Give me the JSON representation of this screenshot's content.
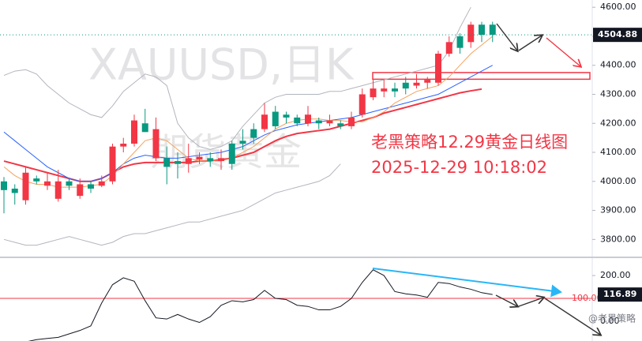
{
  "chart_data": [
    {
      "type": "candlestick",
      "title": "XAUUSD,日K",
      "watermark": "期货黄金",
      "annotations": [
        "老黑策略12.29黄金日线图",
        "2025-12-29 10:18:02"
      ],
      "open": [
        3970,
        3960,
        4030,
        4000,
        4000,
        4000,
        3985,
        3990,
        3975,
        4000,
        4120,
        4130,
        4210,
        4170,
        4180,
        4050,
        4060,
        4080,
        4085,
        4070,
        4080,
        4060,
        4130,
        4150,
        4230,
        4190,
        4220,
        4200,
        4230,
        4200,
        4210,
        4190,
        4220,
        4300,
        4320,
        4320,
        4310,
        4320,
        4340,
        4350,
        4440,
        4480,
        4460,
        4540,
        4505,
        4505
      ],
      "high": [
        4015,
        3990,
        4050,
        4020,
        4030,
        4040,
        4010,
        4010,
        4000,
        4020,
        4130,
        4150,
        4230,
        4250,
        4220,
        4120,
        4100,
        4130,
        4100,
        4100,
        4110,
        4140,
        4180,
        4200,
        4270,
        4260,
        4240,
        4230,
        4260,
        4220,
        4230,
        4210,
        4240,
        4320,
        4350,
        4350,
        4340,
        4360,
        4370,
        4360,
        4450,
        4500,
        4510,
        4550,
        4550,
        4550
      ],
      "low": [
        3890,
        3920,
        3920,
        3990,
        3970,
        3930,
        3970,
        3940,
        3960,
        3980,
        3990,
        4100,
        4120,
        4170,
        4070,
        3990,
        4010,
        4030,
        4060,
        4050,
        4040,
        4040,
        4110,
        4130,
        4170,
        4180,
        4200,
        4190,
        4190,
        4180,
        4190,
        4180,
        4180,
        4220,
        4280,
        4290,
        4290,
        4300,
        4320,
        4320,
        4330,
        4430,
        4440,
        4460,
        4480,
        4480
      ],
      "close": [
        4000,
        3975,
        3935,
        4010,
        3985,
        3940,
        4000,
        3950,
        3990,
        3985,
        4000,
        4120,
        4130,
        4200,
        4080,
        4080,
        4070,
        4060,
        4075,
        4080,
        4070,
        4130,
        4140,
        4180,
        4180,
        4240,
        4230,
        4220,
        4200,
        4210,
        4200,
        4200,
        4190,
        4230,
        4290,
        4310,
        4320,
        4340,
        4330,
        4340,
        4340,
        4440,
        4500,
        4480,
        4540,
        4540
      ],
      "up_color": "#089981",
      "down_color": "#f23645",
      "lines": [
        {
          "color": "#b2b5be",
          "values": [
            4365,
            4380,
            4385,
            4370,
            4330,
            4300,
            4270,
            4250,
            4230,
            4220,
            4260,
            4310,
            4340,
            4370,
            4360,
            4330,
            4200,
            4150,
            4120,
            4110,
            4120,
            4140,
            4190,
            4230,
            4270,
            4290,
            4300,
            4300,
            4300,
            4300,
            4310,
            4310,
            4320,
            4330,
            4340,
            4350,
            4360,
            4370,
            4380,
            4390,
            4400,
            4450,
            4530,
            4600,
            null,
            null
          ]
        },
        {
          "color": "#b2b5be",
          "values": [
            3800,
            3790,
            3780,
            3780,
            3790,
            3800,
            3810,
            3800,
            3790,
            3780,
            3790,
            3810,
            3820,
            3820,
            3830,
            3840,
            3850,
            3860,
            3860,
            3870,
            3880,
            3890,
            3900,
            3920,
            3940,
            3960,
            3970,
            3980,
            3990,
            4000,
            4020,
            4060,
            null,
            null,
            null,
            null,
            null,
            null,
            null,
            null,
            null,
            null,
            null,
            null,
            null,
            null
          ]
        },
        {
          "color": "#f23645",
          "values": [
            4070,
            4060,
            4050,
            4040,
            4030,
            4020,
            4010,
            4000,
            4000,
            4010,
            4030,
            4050,
            4060,
            4065,
            4065,
            4065,
            4065,
            4065,
            4070,
            4070,
            4075,
            4080,
            4090,
            4100,
            4120,
            4140,
            4155,
            4165,
            4170,
            4175,
            4180,
            4190,
            4200,
            4210,
            4220,
            4235,
            4245,
            4255,
            4265,
            4275,
            4285,
            4295,
            4305,
            4312,
            4318,
            null
          ]
        },
        {
          "color": "#2962ff",
          "values": [
            4170,
            4140,
            4110,
            4080,
            4050,
            4030,
            4010,
            4000,
            4000,
            4010,
            4030,
            4060,
            4080,
            4090,
            4085,
            4080,
            4080,
            4085,
            4090,
            4095,
            4100,
            4110,
            4120,
            4140,
            4160,
            4175,
            4185,
            4195,
            4200,
            4205,
            4210,
            4215,
            4220,
            4230,
            4240,
            4250,
            4260,
            4270,
            4280,
            4290,
            4300,
            4320,
            4340,
            4360,
            4380,
            4400
          ]
        },
        {
          "color": "#f5a25d",
          "values": [
            4050,
            4020,
            4000,
            3990,
            3990,
            3980,
            3980,
            3980,
            3985,
            3990,
            4020,
            4060,
            4100,
            4140,
            4150,
            4140,
            4110,
            4080,
            4070,
            4070,
            4070,
            4080,
            4100,
            4120,
            4150,
            4180,
            4200,
            4210,
            4215,
            4215,
            4210,
            4210,
            4205,
            4205,
            4220,
            4240,
            4270,
            4290,
            4310,
            4320,
            4330,
            4360,
            4400,
            4440,
            4470,
            4500
          ]
        }
      ],
      "zone": [
        4352,
        4375
      ],
      "zone_color": "#f23645",
      "last_price": 4504.88,
      "ylim": [
        3741,
        4625
      ],
      "yticks": [
        {
          "value": 3800,
          "label": "3800.00"
        },
        {
          "value": 3900,
          "label": "3900.00"
        },
        {
          "value": 4000,
          "label": "4000.00"
        },
        {
          "value": 4100,
          "label": "4100.00"
        },
        {
          "value": 4200,
          "label": "4200.00"
        },
        {
          "value": 4300,
          "label": "4300.00"
        },
        {
          "value": 4400,
          "label": "4400.00"
        },
        {
          "value": 4500,
          "label": "4500.00"
        },
        {
          "value": 4600,
          "label": "4600.00"
        }
      ]
    },
    {
      "type": "line",
      "credit": "@老黑策略",
      "color": "#131722",
      "values": [
        null,
        null,
        -90,
        -80,
        -75,
        -70,
        -55,
        -40,
        -20,
        80,
        160,
        190,
        175,
        90,
        15,
        10,
        30,
        10,
        -5,
        20,
        70,
        90,
        85,
        95,
        135,
        100,
        95,
        70,
        65,
        50,
        50,
        65,
        100,
        170,
        225,
        200,
        130,
        120,
        115,
        105,
        170,
        165,
        150,
        140,
        125,
        116.89
      ],
      "hline": 100,
      "hline_color": "#f23645",
      "last_value": 116.89,
      "ylim": [
        -86,
        276
      ],
      "yticks": [
        {
          "value": 0,
          "label": "0.00"
        },
        {
          "value": 100,
          "label": "100.00"
        },
        {
          "value": 200,
          "label": "200.00"
        }
      ]
    }
  ]
}
